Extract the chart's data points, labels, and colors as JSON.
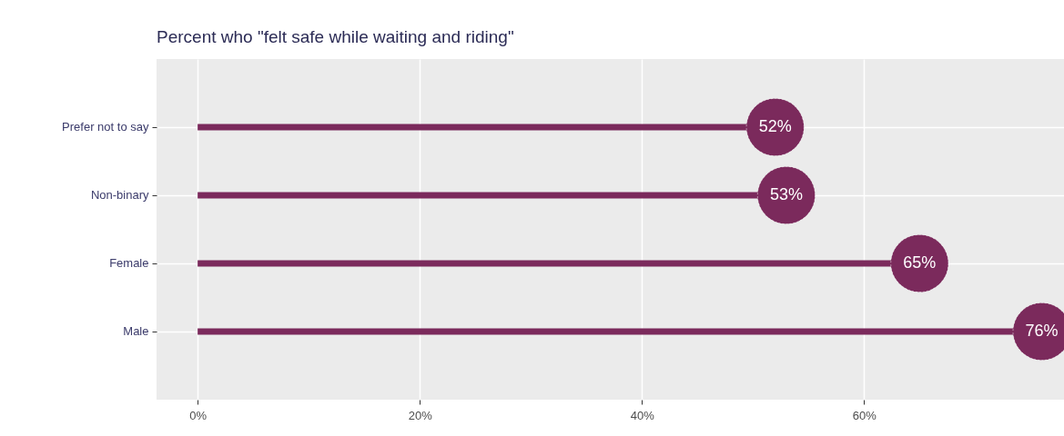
{
  "chart_data": {
    "type": "lollipop",
    "title": "Percent who \"felt safe while waiting and riding\"",
    "orientation": "horizontal",
    "categories": [
      "Prefer not to say",
      "Non-binary",
      "Female",
      "Male"
    ],
    "values": [
      52,
      53,
      65,
      76
    ],
    "value_labels": [
      "52%",
      "53%",
      "65%",
      "76%"
    ],
    "color": "#7b2a5c",
    "marker": "circle",
    "xlim": [
      -3.7,
      78
    ],
    "xticks": [
      {
        "value": 0,
        "label": "0%"
      },
      {
        "value": 20,
        "label": "20%"
      },
      {
        "value": 40,
        "label": "40%"
      },
      {
        "value": 60,
        "label": "60%"
      }
    ],
    "grid": true
  }
}
